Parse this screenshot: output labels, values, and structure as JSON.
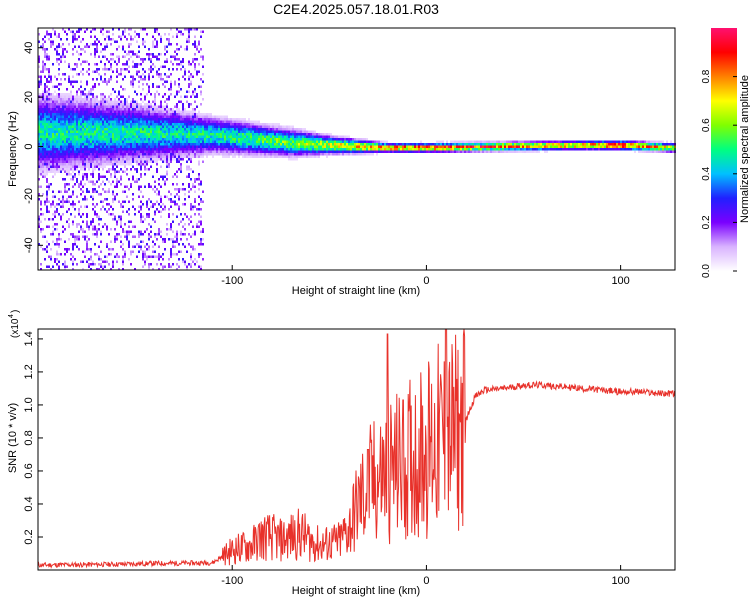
{
  "chart_data": [
    {
      "type": "heatmap",
      "title": "C2E4.2025.057.18.01.R03",
      "xlabel": "Height of straight line (km)",
      "ylabel": "Frequency (Hz)",
      "xlim": [
        -200,
        128
      ],
      "ylim": [
        -50,
        48
      ],
      "x_ticks": [
        -100,
        0,
        100
      ],
      "y_ticks": [
        -40,
        -20,
        0,
        20,
        40
      ],
      "colorbar": {
        "label": "Normalized spectral amplitude",
        "range": [
          0,
          1
        ],
        "ticks": [
          0.0,
          0.2,
          0.4,
          0.6,
          0.8
        ],
        "colormap": [
          "#ffffff",
          "#d9b3ff",
          "#7a00ff",
          "#2020ff",
          "#00c0ff",
          "#00ff80",
          "#80ff00",
          "#ffff00",
          "#ff8000",
          "#ff0000",
          "#ff1070"
        ]
      },
      "ridge": [
        {
          "x": -200,
          "center_hz": 6,
          "spread_hz": 8,
          "amp": 0.5
        },
        {
          "x": -150,
          "center_hz": 6,
          "spread_hz": 6,
          "amp": 0.5
        },
        {
          "x": -110,
          "center_hz": 5,
          "spread_hz": 4,
          "amp": 0.5
        },
        {
          "x": -70,
          "center_hz": 2,
          "spread_hz": 3,
          "amp": 0.6
        },
        {
          "x": -50,
          "center_hz": 1,
          "spread_hz": 2,
          "amp": 0.7
        },
        {
          "x": -20,
          "center_hz": 0,
          "spread_hz": 1,
          "amp": 0.85
        },
        {
          "x": 0,
          "center_hz": 0,
          "spread_hz": 1,
          "amp": 0.9
        },
        {
          "x": 80,
          "center_hz": 1,
          "spread_hz": 1,
          "amp": 0.8
        },
        {
          "x": 100,
          "center_hz": 1,
          "spread_hz": 1,
          "amp": 0.95
        },
        {
          "x": 128,
          "center_hz": 0,
          "spread_hz": 1,
          "amp": 0.7
        }
      ]
    },
    {
      "type": "line",
      "xlabel": "Height of straight line (km)",
      "ylabel": "SNR (10 * v/v)",
      "y_scale_label": "(x10",
      "y_scale_exp": "4",
      "xlim": [
        -200,
        128
      ],
      "ylim": [
        0,
        14600
      ],
      "x_ticks": [
        -100,
        0,
        100
      ],
      "y_ticks": [
        2000,
        4000,
        6000,
        8000,
        10000,
        12000,
        14000
      ],
      "y_tick_labels": [
        "0.2",
        "0.4",
        "0.6",
        "0.8",
        "1.0",
        "1.2",
        "1.4"
      ],
      "color": "#e8312a",
      "series": [
        {
          "x": [
            -200,
            -180,
            -160,
            -140,
            -120,
            -110,
            -100,
            -90,
            -85,
            -80,
            -75,
            -70,
            -65,
            -60,
            -55,
            -50,
            -45,
            -40,
            -35,
            -30,
            -25,
            -20,
            -15,
            -10,
            -5,
            0,
            5,
            10,
            15,
            20,
            25,
            30,
            40,
            50,
            60,
            70,
            80,
            90,
            100,
            110,
            120,
            128
          ],
          "y": [
            300,
            320,
            350,
            400,
            420,
            450,
            1200,
            1500,
            2000,
            2000,
            1800,
            2000,
            2200,
            1800,
            1500,
            1600,
            1700,
            2500,
            4000,
            5000,
            5500,
            6000,
            6200,
            6500,
            7000,
            7400,
            7800,
            8000,
            8200,
            9000,
            10500,
            10900,
            11000,
            11200,
            11200,
            11100,
            11000,
            10900,
            10800,
            10800,
            10700,
            10700
          ]
        }
      ],
      "spikes": [
        {
          "x": -20,
          "y": 14300
        },
        {
          "x": -12,
          "y": 10300
        },
        {
          "x": 10,
          "y": 14600
        },
        {
          "x": -30,
          "y": 7300
        }
      ]
    }
  ]
}
